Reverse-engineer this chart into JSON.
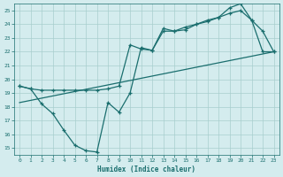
{
  "background_color": "#d4ecee",
  "grid_color": "#a8cece",
  "line_color": "#1a6e6e",
  "xlabel": "Humidex (Indice chaleur)",
  "xlim": [
    -0.5,
    23.5
  ],
  "ylim": [
    14.5,
    25.5
  ],
  "yticks": [
    15,
    16,
    17,
    18,
    19,
    20,
    21,
    22,
    23,
    24,
    25
  ],
  "xticks": [
    0,
    1,
    2,
    3,
    4,
    5,
    6,
    7,
    8,
    9,
    10,
    11,
    12,
    13,
    14,
    15,
    16,
    17,
    18,
    19,
    20,
    21,
    22,
    23
  ],
  "line1_x": [
    0,
    1,
    2,
    3,
    4,
    5,
    6,
    7,
    8,
    9,
    10,
    11,
    12,
    13,
    14,
    15,
    16,
    17,
    18,
    19,
    20,
    21,
    22,
    23
  ],
  "line1_y": [
    19.5,
    19.3,
    18.2,
    17.5,
    16.3,
    15.2,
    14.8,
    14.7,
    18.3,
    17.6,
    19.0,
    22.3,
    22.1,
    23.7,
    23.5,
    23.6,
    24.0,
    24.2,
    24.5,
    25.2,
    25.5,
    24.3,
    23.5,
    22.0
  ],
  "line2_x": [
    0,
    1,
    2,
    3,
    4,
    5,
    6,
    7,
    8,
    9,
    10,
    11,
    12,
    13,
    14,
    15,
    16,
    17,
    18,
    19,
    20,
    21,
    22,
    23
  ],
  "line2_y": [
    19.5,
    19.3,
    19.2,
    19.2,
    19.2,
    19.2,
    19.2,
    19.2,
    19.3,
    19.5,
    22.5,
    22.2,
    22.1,
    23.5,
    23.5,
    23.8,
    24.0,
    24.3,
    24.5,
    24.8,
    25.0,
    24.3,
    22.0,
    22.0
  ],
  "line3_x": [
    0,
    23
  ],
  "line3_y": [
    18.3,
    22.0
  ]
}
